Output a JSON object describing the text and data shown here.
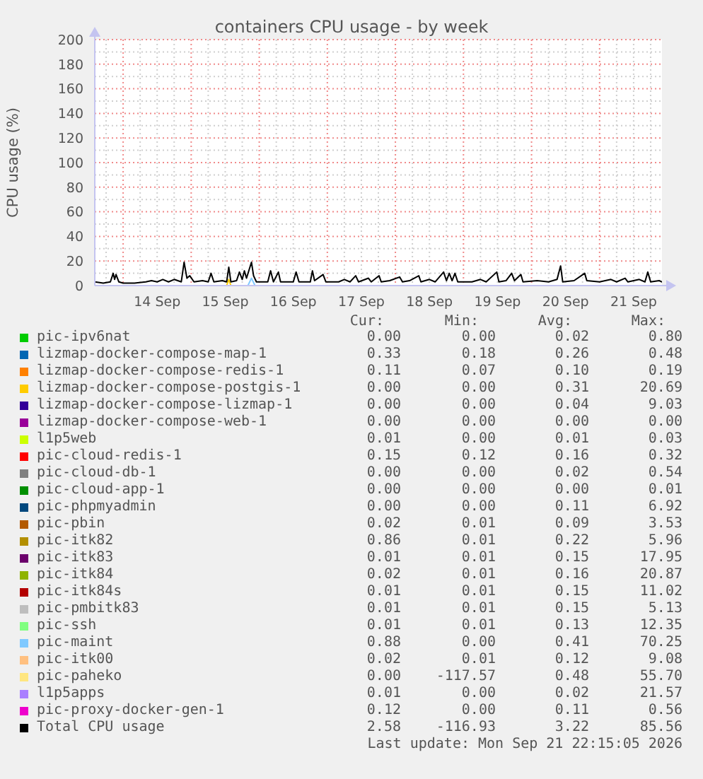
{
  "chart_data": {
    "type": "line",
    "title": "containers CPU usage - by week",
    "ylabel": "CPU usage (%)",
    "xlim": [
      "2026-09-13T14:00",
      "2026-09-21T22:00"
    ],
    "ylim": [
      0,
      200
    ],
    "xticks": [
      {
        "value": "2026-09-13T18:00",
        "label": null
      },
      {
        "value": "2026-09-14T00:00",
        "label": null
      },
      {
        "value": "2026-09-14T06:00",
        "label": null
      },
      {
        "value": "2026-09-14T12:00",
        "label": "14 Sep"
      },
      {
        "value": "2026-09-14T18:00",
        "label": null
      },
      {
        "value": "2026-09-15T00:00",
        "label": null
      },
      {
        "value": "2026-09-15T06:00",
        "label": null
      },
      {
        "value": "2026-09-15T12:00",
        "label": "15 Sep"
      },
      {
        "value": "2026-09-15T18:00",
        "label": null
      },
      {
        "value": "2026-09-16T00:00",
        "label": null
      },
      {
        "value": "2026-09-16T06:00",
        "label": null
      },
      {
        "value": "2026-09-16T12:00",
        "label": "16 Sep"
      },
      {
        "value": "2026-09-16T18:00",
        "label": null
      },
      {
        "value": "2026-09-17T00:00",
        "label": null
      },
      {
        "value": "2026-09-17T06:00",
        "label": null
      },
      {
        "value": "2026-09-17T12:00",
        "label": "17 Sep"
      },
      {
        "value": "2026-09-17T18:00",
        "label": null
      },
      {
        "value": "2026-09-18T00:00",
        "label": null
      },
      {
        "value": "2026-09-18T06:00",
        "label": null
      },
      {
        "value": "2026-09-18T12:00",
        "label": "18 Sep"
      },
      {
        "value": "2026-09-18T18:00",
        "label": null
      },
      {
        "value": "2026-09-19T00:00",
        "label": null
      },
      {
        "value": "2026-09-19T06:00",
        "label": null
      },
      {
        "value": "2026-09-19T12:00",
        "label": "19 Sep"
      },
      {
        "value": "2026-09-19T18:00",
        "label": null
      },
      {
        "value": "2026-09-20T00:00",
        "label": null
      },
      {
        "value": "2026-09-20T06:00",
        "label": null
      },
      {
        "value": "2026-09-20T12:00",
        "label": "20 Sep"
      },
      {
        "value": "2026-09-20T18:00",
        "label": null
      },
      {
        "value": "2026-09-21T00:00",
        "label": null
      },
      {
        "value": "2026-09-21T06:00",
        "label": null
      },
      {
        "value": "2026-09-21T12:00",
        "label": "21 Sep"
      },
      {
        "value": "2026-09-21T18:00",
        "label": null
      }
    ],
    "yticks": [
      0,
      {
        "value": 10,
        "label": null
      },
      20,
      {
        "value": 30,
        "label": null
      },
      40,
      {
        "value": 50,
        "label": null
      },
      60,
      {
        "value": 70,
        "label": null
      },
      80,
      {
        "value": 90,
        "label": null
      },
      100,
      {
        "value": 110,
        "label": null
      },
      120,
      {
        "value": 130,
        "label": null
      },
      140,
      {
        "value": 150,
        "label": null
      },
      160,
      {
        "value": 170,
        "label": null
      },
      180,
      {
        "value": 190,
        "label": null
      },
      200
    ],
    "grid": true,
    "legend": "bottom",
    "marker": "none",
    "line_style": "solid",
    "series": [
      {
        "name": "pic-ipv6nat",
        "color": "#00cc00"
      },
      {
        "name": "lizmap-docker-compose-map-1",
        "color": "#0066b3"
      },
      {
        "name": "lizmap-docker-compose-redis-1",
        "color": "#ff8000"
      },
      {
        "name": "lizmap-docker-compose-postgis-1",
        "color": "#ffcc00",
        "x": [
          "2026-09-15T12:30",
          "2026-09-15T13:15",
          "2026-09-15T14:00"
        ],
        "values": [
          0,
          5,
          0
        ]
      },
      {
        "name": "lizmap-docker-compose-lizmap-1",
        "color": "#330099"
      },
      {
        "name": "lizmap-docker-compose-web-1",
        "color": "#990099"
      },
      {
        "name": "l1p5web",
        "color": "#ccff00"
      },
      {
        "name": "pic-cloud-redis-1",
        "color": "#ff0000"
      },
      {
        "name": "pic-cloud-db-1",
        "color": "#808080"
      },
      {
        "name": "pic-cloud-app-1",
        "color": "#008f00"
      },
      {
        "name": "pic-phpmyadmin",
        "color": "#00487d"
      },
      {
        "name": "pic-pbin",
        "color": "#b35a00"
      },
      {
        "name": "pic-itk82",
        "color": "#b38f00"
      },
      {
        "name": "pic-itk83",
        "color": "#6b006b"
      },
      {
        "name": "pic-itk84",
        "color": "#8fb300"
      },
      {
        "name": "pic-itk84s",
        "color": "#b30000"
      },
      {
        "name": "pic-pmbitk83",
        "color": "#bebebe"
      },
      {
        "name": "pic-ssh",
        "color": "#80ff80"
      },
      {
        "name": "pic-maint",
        "color": "#80c9ff",
        "x": [
          "2026-09-15T20:00",
          "2026-09-15T21:15",
          "2026-09-15T22:30"
        ],
        "values": [
          0,
          6,
          0
        ]
      },
      {
        "name": "pic-itk00",
        "color": "#ffc080"
      },
      {
        "name": "pic-paheko",
        "color": "#ffe680"
      },
      {
        "name": "l1p5apps",
        "color": "#aa80ff"
      },
      {
        "name": "pic-proxy-docker-gen-1",
        "color": "#ee00cc"
      },
      {
        "name": "Total CPU usage",
        "color": "#000000",
        "x": [
          "2026-09-13T14:00",
          "2026-09-13T17:00",
          "2026-09-13T19:30",
          "2026-09-13T20:30",
          "2026-09-13T21:00",
          "2026-09-13T21:30",
          "2026-09-13T22:30",
          "2026-09-14T00:00",
          "2026-09-14T04:00",
          "2026-09-14T08:00",
          "2026-09-14T10:00",
          "2026-09-14T12:00",
          "2026-09-14T14:00",
          "2026-09-14T16:00",
          "2026-09-14T18:00",
          "2026-09-14T20:30",
          "2026-09-14T21:30",
          "2026-09-14T22:30",
          "2026-09-14T23:30",
          "2026-09-15T01:00",
          "2026-09-15T04:00",
          "2026-09-15T06:00",
          "2026-09-15T07:00",
          "2026-09-15T08:00",
          "2026-09-15T11:00",
          "2026-09-15T12:30",
          "2026-09-15T13:15",
          "2026-09-15T14:00",
          "2026-09-15T16:00",
          "2026-09-15T17:00",
          "2026-09-15T18:00",
          "2026-09-15T18:45",
          "2026-09-15T19:30",
          "2026-09-15T21:15",
          "2026-09-15T22:00",
          "2026-09-15T23:00",
          "2026-09-16T03:00",
          "2026-09-16T04:00",
          "2026-09-16T05:00",
          "2026-09-16T06:45",
          "2026-09-16T07:30",
          "2026-09-16T12:00",
          "2026-09-16T13:00",
          "2026-09-16T14:00",
          "2026-09-16T18:00",
          "2026-09-16T18:45",
          "2026-09-16T19:30",
          "2026-09-16T22:30",
          "2026-09-16T23:30",
          "2026-09-17T04:00",
          "2026-09-17T06:00",
          "2026-09-17T08:00",
          "2026-09-17T10:00",
          "2026-09-17T11:00",
          "2026-09-17T14:30",
          "2026-09-17T15:30",
          "2026-09-17T18:15",
          "2026-09-17T19:00",
          "2026-09-17T22:00",
          "2026-09-18T01:30",
          "2026-09-18T02:30",
          "2026-09-18T05:00",
          "2026-09-18T08:15",
          "2026-09-18T09:00",
          "2026-09-18T12:00",
          "2026-09-18T14:00",
          "2026-09-18T17:00",
          "2026-09-18T18:00",
          "2026-09-18T19:00",
          "2026-09-18T20:00",
          "2026-09-18T21:00",
          "2026-09-18T22:00",
          "2026-09-19T03:00",
          "2026-09-19T06:00",
          "2026-09-19T08:00",
          "2026-09-19T11:45",
          "2026-09-19T12:30",
          "2026-09-19T15:00",
          "2026-09-19T17:00",
          "2026-09-19T18:00",
          "2026-09-19T20:15",
          "2026-09-19T21:00",
          "2026-09-20T02:00",
          "2026-09-20T06:00",
          "2026-09-20T09:00",
          "2026-09-20T10:15",
          "2026-09-20T11:00",
          "2026-09-20T15:00",
          "2026-09-20T18:45",
          "2026-09-20T19:30",
          "2026-09-21T00:00",
          "2026-09-21T04:00",
          "2026-09-21T06:00",
          "2026-09-21T09:00",
          "2026-09-21T10:00",
          "2026-09-21T14:00",
          "2026-09-21T16:00",
          "2026-09-21T17:00",
          "2026-09-21T18:00",
          "2026-09-21T21:00",
          "2026-09-21T22:00"
        ],
        "values": [
          3,
          2,
          3,
          10,
          5,
          9,
          3,
          2,
          2,
          3,
          4,
          3,
          5,
          3,
          5,
          3,
          19,
          6,
          8,
          3,
          4,
          3,
          10,
          3,
          4,
          3,
          15,
          3,
          4,
          11,
          5,
          12,
          6,
          19,
          8,
          3,
          3,
          12,
          3,
          11,
          3,
          3,
          11,
          3,
          3,
          12,
          4,
          9,
          3,
          3,
          5,
          3,
          8,
          3,
          6,
          3,
          8,
          3,
          4,
          7,
          3,
          4,
          8,
          3,
          5,
          3,
          11,
          4,
          10,
          4,
          10,
          3,
          3,
          5,
          3,
          11,
          3,
          4,
          10,
          4,
          9,
          3,
          4,
          3,
          5,
          16,
          3,
          4,
          10,
          4,
          3,
          5,
          3,
          6,
          3,
          5,
          3,
          11,
          3,
          4,
          3
        ]
      }
    ],
    "annotations": [
      "Cur:",
      "Min:",
      "Avg:",
      "Max:",
      "0.00",
      "0.00",
      "0.02",
      "0.80",
      "0.33",
      "0.18",
      "0.26",
      "0.48",
      "0.11",
      "0.07",
      "0.10",
      "0.19",
      "0.00",
      "0.00",
      "0.31",
      "20.69",
      "0.00",
      "0.00",
      "0.04",
      "9.03",
      "0.00",
      "0.00",
      "0.00",
      "0.00",
      "0.01",
      "0.00",
      "0.01",
      "0.03",
      "0.15",
      "0.12",
      "0.16",
      "0.32",
      "0.00",
      "0.00",
      "0.02",
      "0.54",
      "0.00",
      "0.00",
      "0.00",
      "0.01",
      "0.00",
      "0.00",
      "0.11",
      "6.92",
      "0.02",
      "0.01",
      "0.09",
      "3.53",
      "0.86",
      "0.01",
      "0.22",
      "5.96",
      "0.01",
      "0.01",
      "0.15",
      "17.95",
      "0.02",
      "0.01",
      "0.16",
      "20.87",
      "0.01",
      "0.01",
      "0.15",
      "11.02",
      "0.01",
      "0.01",
      "0.15",
      "5.13",
      "0.01",
      "0.01",
      "0.13",
      "12.35",
      "0.88",
      "0.00",
      "0.41",
      "70.25",
      "0.02",
      "0.01",
      "0.12",
      "9.08",
      "0.00",
      "-117.57",
      "0.48",
      "55.70",
      "0.01",
      "0.00",
      "0.02",
      "21.57",
      "0.12",
      "0.00",
      "0.11",
      "0.56",
      "2.58",
      "-116.93",
      "3.22",
      "85.56",
      "Last update: Mon Sep 21 22:15:05 2026"
    ]
  }
}
